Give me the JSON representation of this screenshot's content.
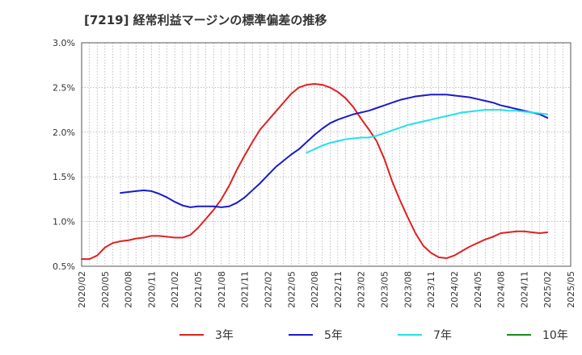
{
  "chart_data": {
    "type": "line",
    "title": "[7219]  経常利益マージンの標準偏差の推移",
    "xlabel": "",
    "ylabel": "",
    "ylim": [
      0.005,
      0.03
    ],
    "y_ticks": [
      "0.5%",
      "1.0%",
      "1.5%",
      "2.0%",
      "2.5%",
      "3.0%"
    ],
    "x_ticks": [
      "2020/02",
      "2020/05",
      "2020/08",
      "2020/11",
      "2021/02",
      "2021/05",
      "2021/08",
      "2021/11",
      "2022/02",
      "2022/05",
      "2022/08",
      "2022/11",
      "2023/02",
      "2023/05",
      "2023/08",
      "2023/11",
      "2024/02",
      "2024/05",
      "2024/08",
      "2024/11",
      "2025/02",
      "2025/05"
    ],
    "grid": true,
    "legend_position": "bottom",
    "series": [
      {
        "name": "3年",
        "color": "#e02020",
        "x": [
          "2020/02",
          "2020/03",
          "2020/04",
          "2020/05",
          "2020/06",
          "2020/07",
          "2020/08",
          "2020/09",
          "2020/10",
          "2020/11",
          "2020/12",
          "2021/01",
          "2021/02",
          "2021/03",
          "2021/04",
          "2021/05",
          "2021/06",
          "2021/07",
          "2021/08",
          "2021/09",
          "2021/10",
          "2021/11",
          "2021/12",
          "2022/01",
          "2022/02",
          "2022/03",
          "2022/04",
          "2022/05",
          "2022/06",
          "2022/07",
          "2022/08",
          "2022/09",
          "2022/10",
          "2022/11",
          "2022/12",
          "2023/01",
          "2023/02",
          "2023/03",
          "2023/04",
          "2023/05",
          "2023/06",
          "2023/07",
          "2023/08",
          "2023/09",
          "2023/10",
          "2023/11",
          "2023/12",
          "2024/01",
          "2024/02",
          "2024/03",
          "2024/04",
          "2024/05",
          "2024/06",
          "2024/07",
          "2024/08",
          "2024/09",
          "2024/10",
          "2024/11",
          "2024/12",
          "2025/01",
          "2025/02"
        ],
        "values": [
          0.0058,
          0.0058,
          0.0062,
          0.0071,
          0.0076,
          0.0078,
          0.0079,
          0.0081,
          0.0082,
          0.0084,
          0.0084,
          0.0083,
          0.0082,
          0.0082,
          0.0085,
          0.0093,
          0.0103,
          0.0113,
          0.0125,
          0.014,
          0.0158,
          0.0174,
          0.0189,
          0.0203,
          0.0213,
          0.0223,
          0.0233,
          0.0243,
          0.025,
          0.0253,
          0.0254,
          0.0253,
          0.025,
          0.0245,
          0.0238,
          0.0228,
          0.0215,
          0.0203,
          0.019,
          0.017,
          0.0145,
          0.0124,
          0.0105,
          0.0087,
          0.0073,
          0.0065,
          0.006,
          0.0059,
          0.0062,
          0.0067,
          0.0072,
          0.0076,
          0.008,
          0.0083,
          0.0087,
          0.0088,
          0.0089,
          0.0089,
          0.0088,
          0.0087,
          0.0088
        ]
      },
      {
        "name": "5年",
        "color": "#1a1acc",
        "x": [
          "2020/07",
          "2020/08",
          "2020/09",
          "2020/10",
          "2020/11",
          "2020/12",
          "2021/01",
          "2021/02",
          "2021/03",
          "2021/04",
          "2021/05",
          "2021/06",
          "2021/07",
          "2021/08",
          "2021/09",
          "2021/10",
          "2021/11",
          "2021/12",
          "2022/01",
          "2022/02",
          "2022/03",
          "2022/04",
          "2022/05",
          "2022/06",
          "2022/07",
          "2022/08",
          "2022/09",
          "2022/10",
          "2022/11",
          "2022/12",
          "2023/01",
          "2023/02",
          "2023/03",
          "2023/04",
          "2023/05",
          "2023/06",
          "2023/07",
          "2023/08",
          "2023/09",
          "2023/10",
          "2023/11",
          "2023/12",
          "2024/01",
          "2024/02",
          "2024/03",
          "2024/04",
          "2024/05",
          "2024/06",
          "2024/07",
          "2024/08",
          "2024/09",
          "2024/10",
          "2024/11",
          "2024/12",
          "2025/01",
          "2025/02"
        ],
        "values": [
          0.0132,
          0.0133,
          0.0134,
          0.0135,
          0.0134,
          0.0131,
          0.0127,
          0.0122,
          0.0118,
          0.0116,
          0.0117,
          0.0117,
          0.0117,
          0.0116,
          0.0117,
          0.0121,
          0.0127,
          0.0135,
          0.0143,
          0.0152,
          0.0161,
          0.0168,
          0.0175,
          0.0181,
          0.0189,
          0.0197,
          0.0204,
          0.021,
          0.0214,
          0.0217,
          0.022,
          0.0222,
          0.0224,
          0.0227,
          0.023,
          0.0233,
          0.0236,
          0.0238,
          0.024,
          0.0241,
          0.0242,
          0.0242,
          0.0242,
          0.0241,
          0.024,
          0.0239,
          0.0237,
          0.0235,
          0.0233,
          0.023,
          0.0228,
          0.0226,
          0.0224,
          0.0222,
          0.022,
          0.0216
        ]
      },
      {
        "name": "7年",
        "color": "#22e0e8",
        "x": [
          "2022/07",
          "2022/08",
          "2022/09",
          "2022/10",
          "2022/11",
          "2022/12",
          "2023/01",
          "2023/02",
          "2023/03",
          "2023/04",
          "2023/05",
          "2023/06",
          "2023/07",
          "2023/08",
          "2023/09",
          "2023/10",
          "2023/11",
          "2023/12",
          "2024/01",
          "2024/02",
          "2024/03",
          "2024/04",
          "2024/05",
          "2024/06",
          "2024/07",
          "2024/08",
          "2024/09",
          "2024/10",
          "2024/11",
          "2024/12",
          "2025/01",
          "2025/02"
        ],
        "values": [
          0.0177,
          0.0181,
          0.0185,
          0.0188,
          0.019,
          0.0192,
          0.0193,
          0.0194,
          0.0194,
          0.0196,
          0.0199,
          0.0202,
          0.0205,
          0.0208,
          0.021,
          0.0212,
          0.0214,
          0.0216,
          0.0218,
          0.022,
          0.0222,
          0.0223,
          0.0224,
          0.0225,
          0.0225,
          0.0225,
          0.0224,
          0.0224,
          0.0223,
          0.0222,
          0.0221,
          0.022
        ]
      },
      {
        "name": "10年",
        "color": "#1a8a1a",
        "x": [],
        "values": []
      }
    ]
  }
}
